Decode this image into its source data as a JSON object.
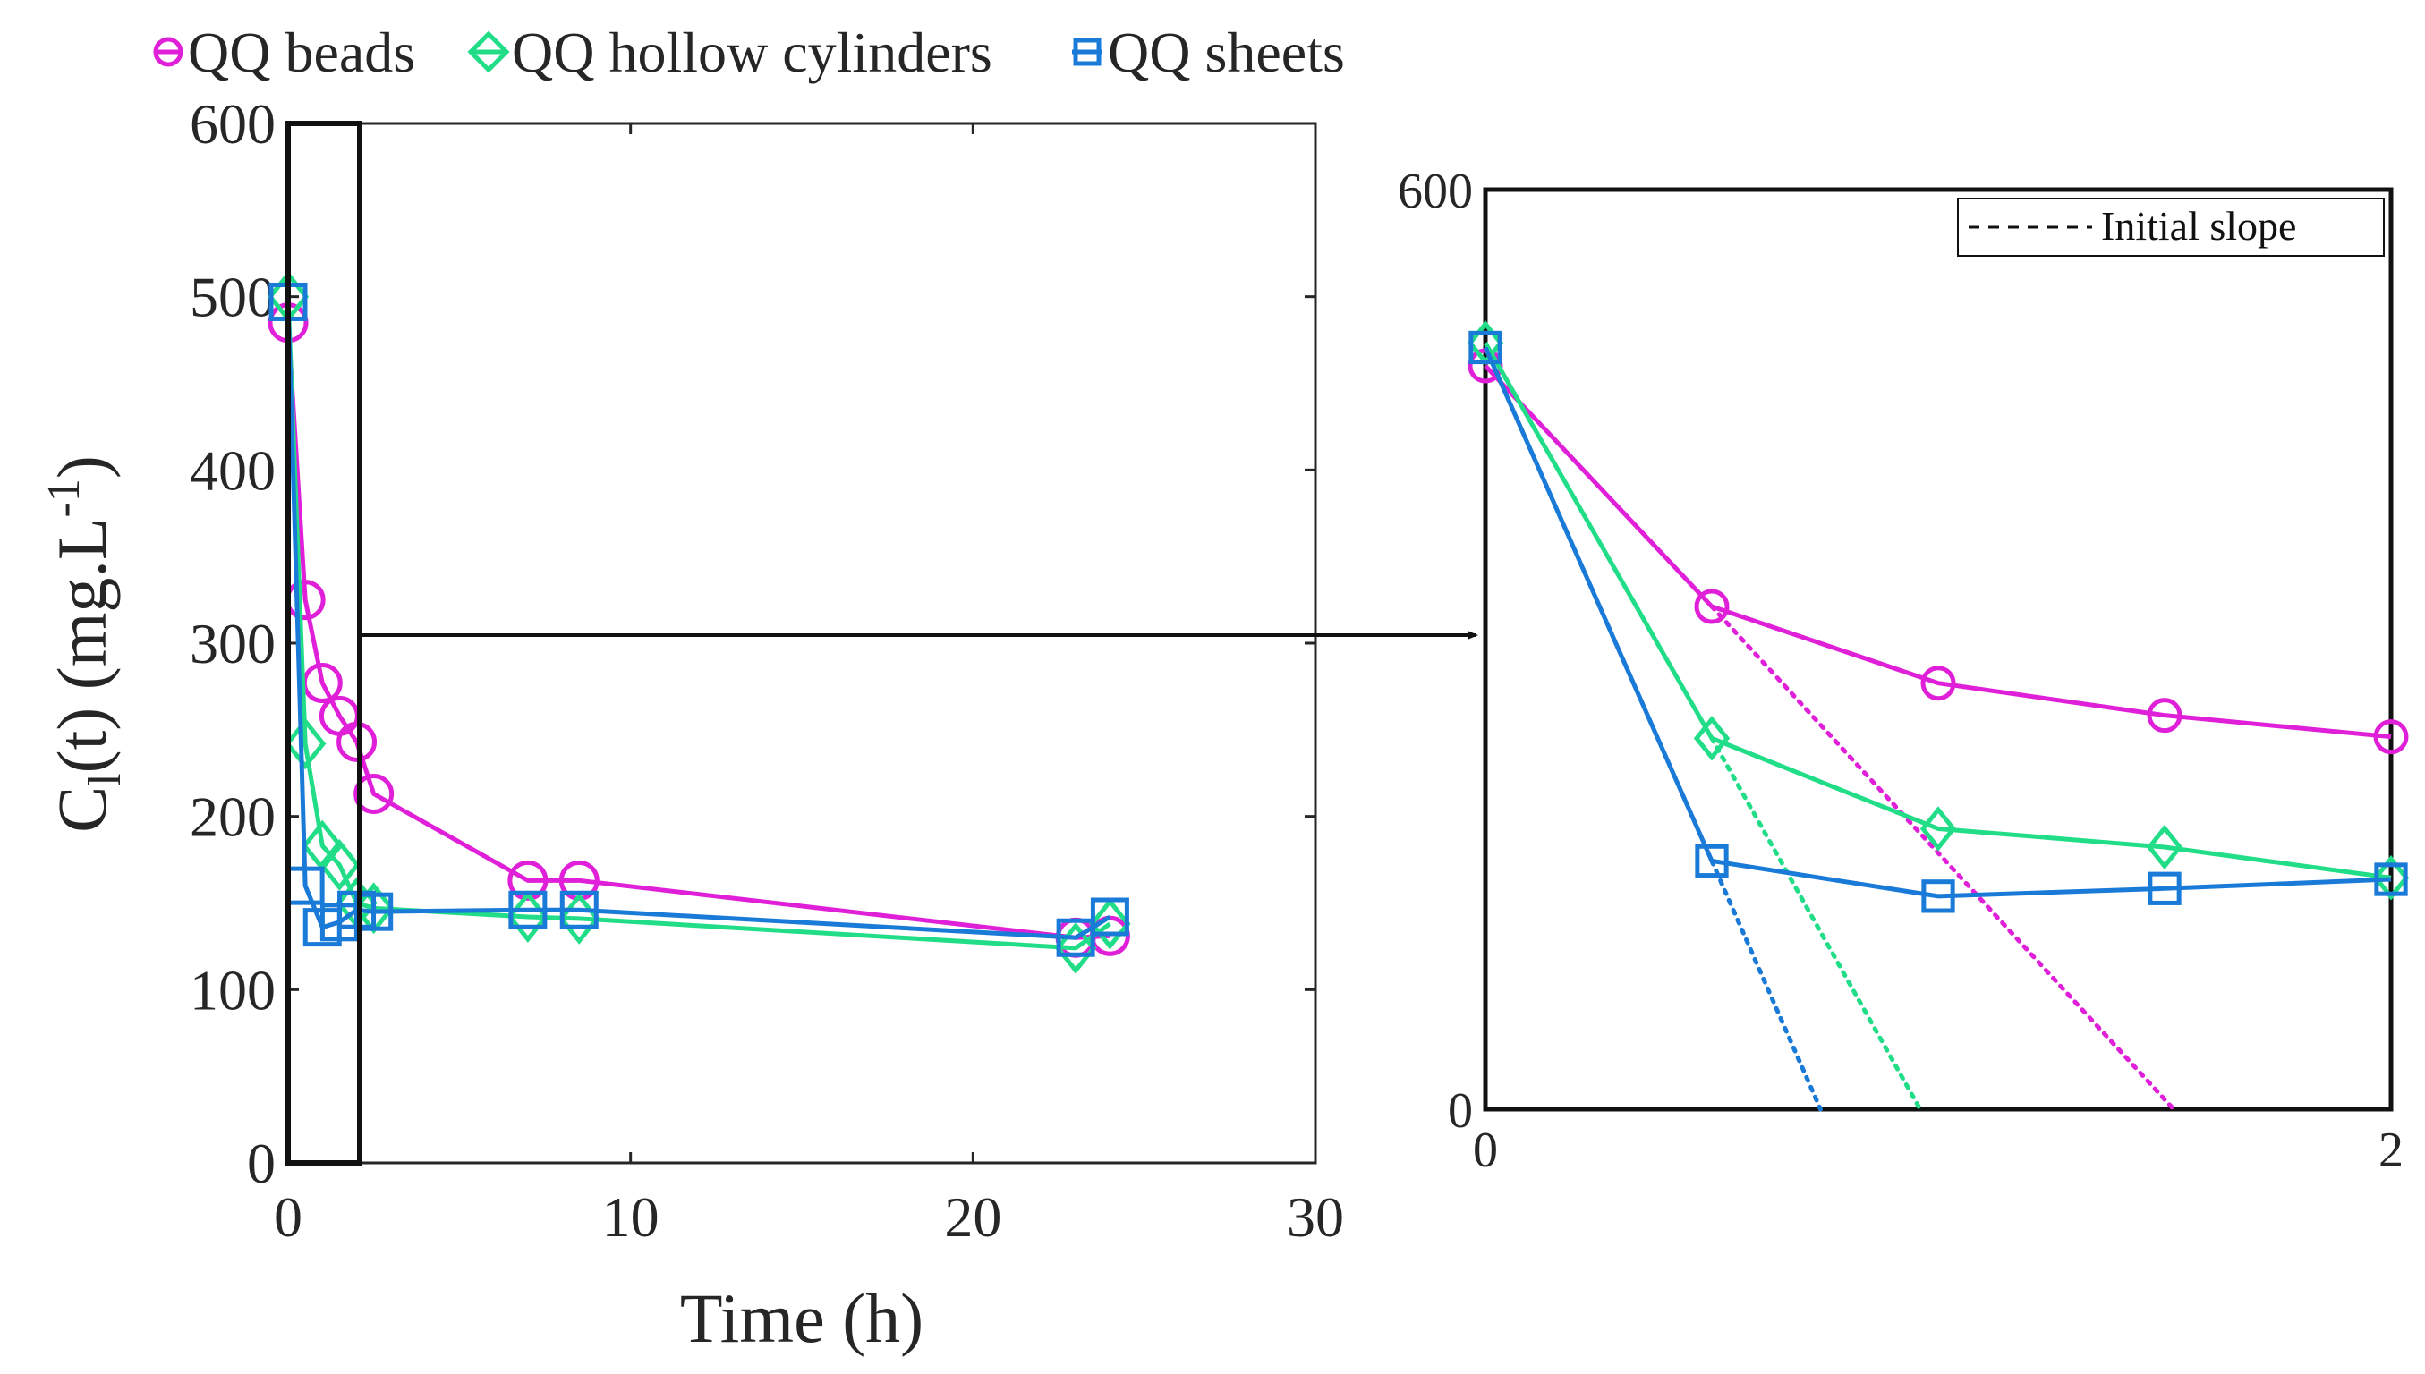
{
  "chart_data": [
    {
      "type": "line",
      "panel": "main",
      "title": "",
      "xlabel": "Time (h)",
      "ylabel_parts": {
        "prefix": "C",
        "subscript": "l",
        "suffix": "(t) (mg.L",
        "superscript": "-1",
        "close": ")"
      },
      "xlim": [
        0,
        30
      ],
      "ylim": [
        0,
        600
      ],
      "xticks": [
        0,
        10,
        20,
        30
      ],
      "xtick_labels": [
        "0",
        "10",
        "20",
        "30"
      ],
      "yticks": [
        0,
        100,
        200,
        300,
        400,
        500,
        600
      ],
      "ytick_labels": [
        "0",
        "100",
        "200",
        "300",
        "400",
        "500",
        "600"
      ],
      "grid": false,
      "legend": {
        "position": "top",
        "entries": [
          "QQ beads",
          "QQ hollow cylinders",
          "QQ sheets"
        ]
      },
      "zoom_box": {
        "x_range": [
          0,
          2
        ],
        "y_range": [
          0,
          600
        ],
        "annotation": "arrow to inset"
      },
      "series": [
        {
          "name": "QQ beads",
          "color": "#e020d8",
          "marker": "circle",
          "x": [
            0,
            0.5,
            1,
            1.5,
            2,
            2.5,
            7,
            8.5,
            23,
            24
          ],
          "y": [
            485,
            325,
            277,
            258,
            243,
            213,
            163,
            163,
            130,
            131
          ]
        },
        {
          "name": "QQ hollow cylinders",
          "color": "#22dd88",
          "marker": "diamond",
          "x": [
            0,
            0.5,
            1,
            1.5,
            2,
            2.5,
            7,
            8.5,
            23,
            24
          ],
          "y": [
            500,
            242,
            183,
            172,
            150,
            147,
            142,
            141,
            124,
            138
          ]
        },
        {
          "name": "QQ sheets",
          "color": "#1a7ad8",
          "marker": "square",
          "x": [
            0,
            0.5,
            1,
            1.5,
            2,
            2.5,
            7,
            8.5,
            23,
            24
          ],
          "y": [
            497,
            160,
            136,
            139,
            146,
            145,
            146,
            146,
            130,
            142
          ]
        }
      ]
    },
    {
      "type": "line",
      "panel": "inset",
      "title": "",
      "xlim": [
        0,
        2
      ],
      "ylim": [
        0,
        600
      ],
      "xticks": [
        0,
        2
      ],
      "xtick_labels": [
        "0",
        "2"
      ],
      "yticks": [
        0,
        600
      ],
      "ytick_labels": [
        "0",
        "600"
      ],
      "grid": false,
      "legend": {
        "position": "top-right",
        "entries": [
          "Initial slope"
        ]
      },
      "series": [
        {
          "name": "QQ beads",
          "color": "#e020d8",
          "marker": "circle",
          "x": [
            0,
            0.5,
            1,
            1.5,
            2
          ],
          "y": [
            485,
            328,
            278,
            257,
            243
          ]
        },
        {
          "name": "QQ hollow cylinders",
          "color": "#22dd88",
          "marker": "diamond",
          "x": [
            0,
            0.5,
            1,
            1.5,
            2
          ],
          "y": [
            500,
            242,
            183,
            171,
            151
          ]
        },
        {
          "name": "QQ sheets",
          "color": "#1a7ad8",
          "marker": "square",
          "x": [
            0,
            0.5,
            1,
            1.5,
            2
          ],
          "y": [
            497,
            162,
            139,
            144,
            150
          ]
        }
      ],
      "initial_slopes": [
        {
          "name": "QQ beads slope",
          "color": "#e020d8",
          "x": [
            0.5,
            1.52
          ],
          "y": [
            328,
            0
          ]
        },
        {
          "name": "QQ hollow cylinders slope",
          "color": "#22dd88",
          "x": [
            0.5,
            0.96
          ],
          "y": [
            242,
            0
          ]
        },
        {
          "name": "QQ sheets slope",
          "color": "#1a7ad8",
          "x": [
            0.5,
            0.74
          ],
          "y": [
            162,
            0
          ]
        }
      ]
    }
  ]
}
